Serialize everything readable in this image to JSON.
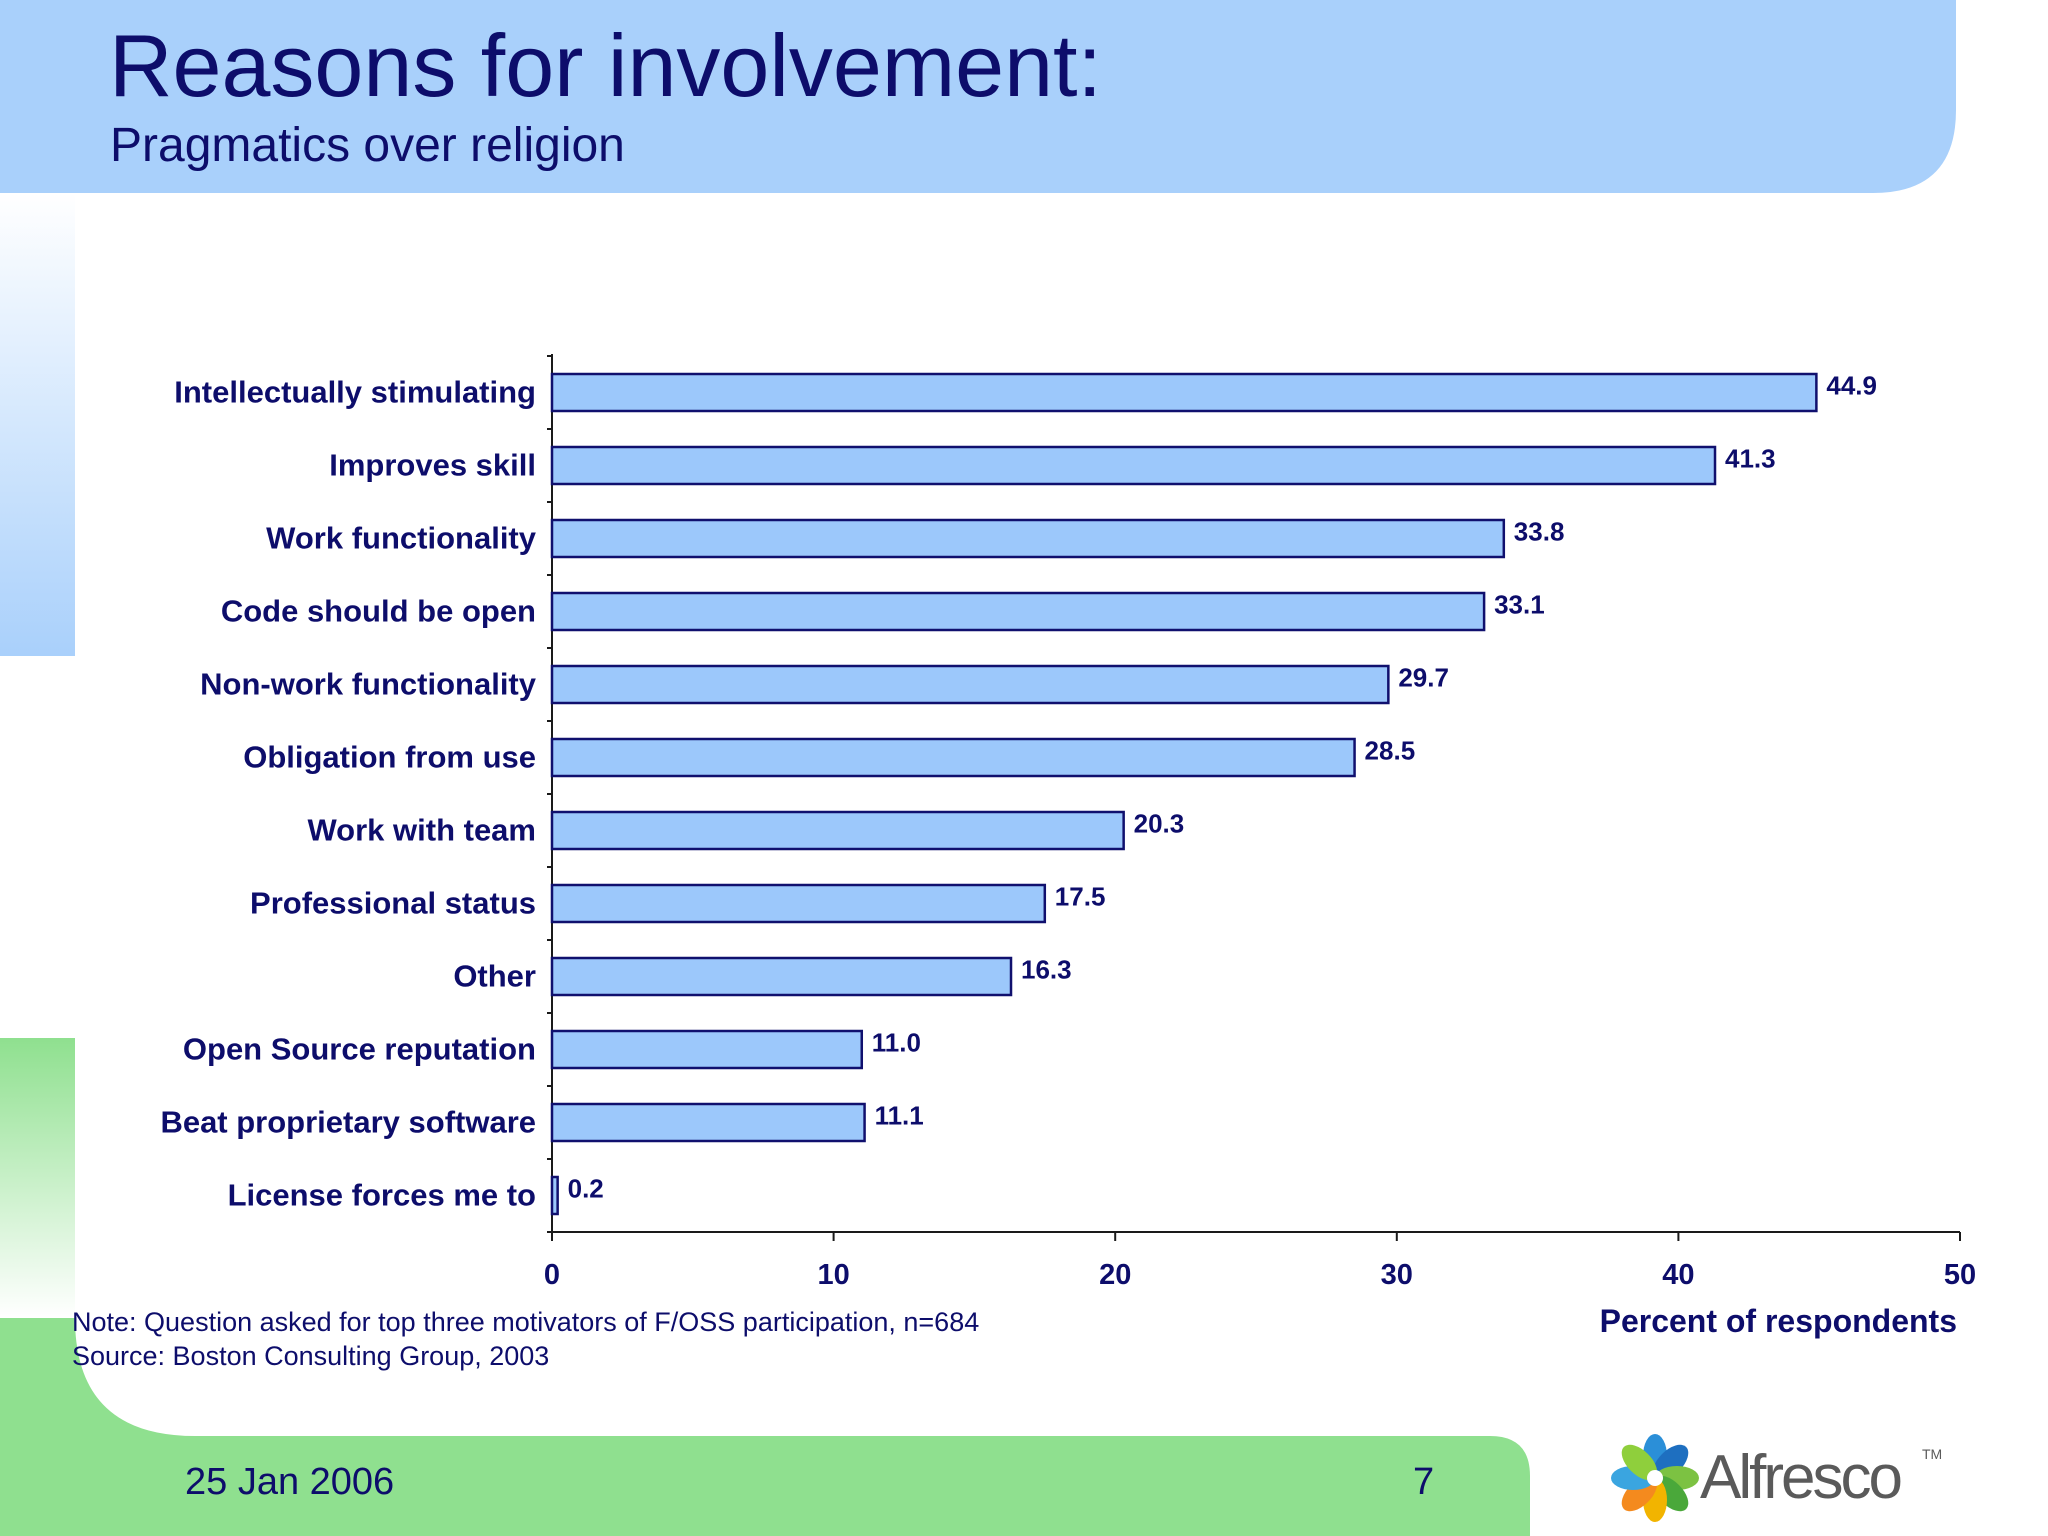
{
  "slide": {
    "title": "Reasons for involvement:",
    "subtitle": "Pragmatics over religion",
    "note_line1": "Note: Question asked for top three motivators of F/OSS participation, n=684",
    "note_line2": "Source: Boston Consulting Group, 2003",
    "date": "25 Jan 2006",
    "page": "7",
    "logo_text": "Alfresco",
    "logo_tm": "TM"
  },
  "colors": {
    "header_blue": "#a9d0fb",
    "band_green": "#8fe08f",
    "bar_fill": "#9cc8fb",
    "bar_stroke": "#10106e",
    "text_navy": "#0d0d6b"
  },
  "chart_data": {
    "type": "bar",
    "orientation": "horizontal",
    "categories": [
      "Intellectually stimulating",
      "Improves skill",
      "Work functionality",
      "Code should be open",
      "Non-work functionality",
      "Obligation from use",
      "Work with team",
      "Professional status",
      "Other",
      "Open Source reputation",
      "Beat proprietary software",
      "License forces me to"
    ],
    "values": [
      44.9,
      41.3,
      33.8,
      33.1,
      29.7,
      28.5,
      20.3,
      17.5,
      16.3,
      11.0,
      11.1,
      0.2
    ],
    "value_labels": [
      "44.9",
      "41.3",
      "33.8",
      "33.1",
      "29.7",
      "28.5",
      "20.3",
      "17.5",
      "16.3",
      "11.0",
      "11.1",
      "0.2"
    ],
    "xlabel": "Percent of respondents",
    "xlim": [
      0,
      50
    ],
    "xticks": [
      0,
      10,
      20,
      30,
      40,
      50
    ],
    "grid": false,
    "legend": "none"
  }
}
